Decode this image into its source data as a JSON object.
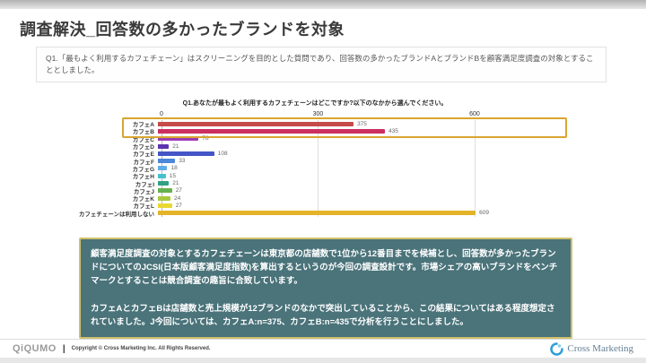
{
  "page": {
    "title": "調査解決_回答数の多かったブランドを対象",
    "intro_text": "Q1.「最もよく利用するカフェチェーン」はスクリーニングを目的とした質問であり、回答数の多かったブランドAとブランドBを顧客満足度調査の対象とすることとしました。"
  },
  "chart_data": {
    "type": "bar",
    "orientation": "horizontal",
    "title": "Q1.あなたが最もよく利用するカフェチェーンはどこですか?以下のなかから選んでください。",
    "categories": [
      "カフェA",
      "カフェB",
      "カフェC",
      "カフェD",
      "カフェE",
      "カフェF",
      "カフェG",
      "カフェH",
      "カフェI",
      "カフェJ",
      "カフェK",
      "カフェL",
      "カフェチェーンは利用しない"
    ],
    "values": [
      375,
      435,
      78,
      21,
      108,
      33,
      18,
      15,
      21,
      27,
      24,
      27,
      609
    ],
    "bar_colors": [
      "#c64a4a",
      "#cb3060",
      "#9d3bb5",
      "#5c33b0",
      "#4456c6",
      "#4d87d9",
      "#61ace8",
      "#46c0cf",
      "#2ea183",
      "#67b14f",
      "#a9c93f",
      "#e9d832",
      "#e5b32a"
    ],
    "xlim": [
      0,
      650
    ],
    "ticks": [
      0,
      300,
      600
    ],
    "grid": true,
    "legend": "none",
    "highlight_rows": [
      0,
      1
    ],
    "highlight_color": "#d9a531"
  },
  "note_box": {
    "background": "#4a737a",
    "border_color": "#cfc06d",
    "paragraph1": "顧客満足度調査の対象とするカフェチェーンは東京都の店舗数で1位から12番目までを候補とし、回答数が多かったブランドについてのJCSI(日本版顧客満足度指数)を算出するというのが今回の調査設計です。市場シェアの高いブランドをベンチマークとすることは競合調査の趣旨に合致しています。",
    "paragraph2": "カフェAとカフェBは店舗数と売上規模が12ブランドのなかで突出していることから、この結果についてはある程度想定されていました。J今回については、カフェA:n=375、カフェB:n=435で分析を行うことにしました。"
  },
  "footer": {
    "brand": "QiQUMO",
    "separator": "|",
    "copyright": "Copyright © Cross Marketing Inc. All Rights Reserved.",
    "logo_text": "Cross Marketing"
  }
}
